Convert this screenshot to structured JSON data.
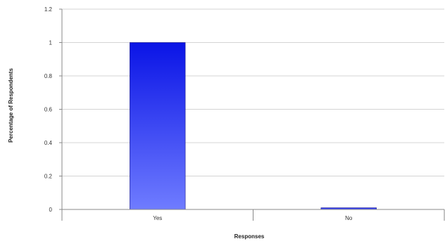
{
  "chart_data": {
    "type": "bar",
    "categories": [
      "Yes",
      "No"
    ],
    "values": [
      1.0,
      0.01
    ],
    "xlabel": "Responses",
    "ylabel": "Percentage of Respondents",
    "ylim": [
      0,
      1.2
    ],
    "yticks": [
      "0",
      "0.2",
      "0.4",
      "0.6",
      "0.8",
      "1",
      "1.2"
    ],
    "grid": true,
    "legend": "none",
    "colors": {
      "bar_top": "#0a14e6",
      "bar_bottom": "#6f7cff",
      "grid": "#d4d4d4",
      "axis": "#888888"
    }
  }
}
